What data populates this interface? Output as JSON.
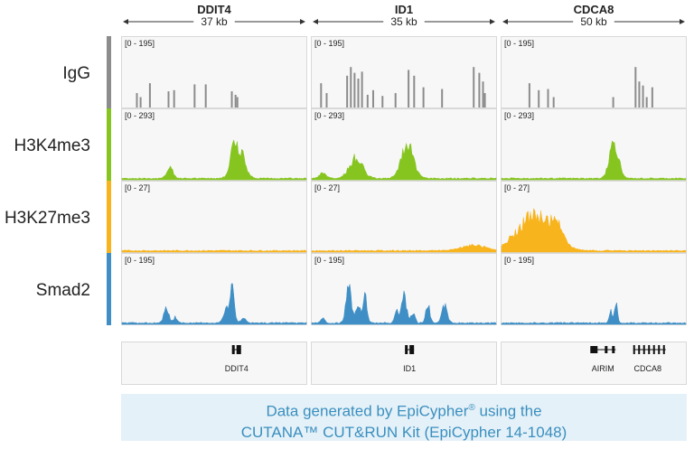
{
  "chart_data": {
    "type": "area",
    "description_tracks": "genome browser coverage tracks",
    "loci": [
      {
        "gene": "DDIT4",
        "size": "37 kb",
        "annotations": [
          {
            "label": "DDIT4",
            "center": 0.62
          }
        ]
      },
      {
        "gene": "ID1",
        "size": "35 kb",
        "annotations": [
          {
            "label": "ID1",
            "center": 0.53
          }
        ]
      },
      {
        "gene": "CDCA8",
        "size": "50 kb",
        "annotations": [
          {
            "label": "AIRIM",
            "center": 0.55
          },
          {
            "label": "CDCA8",
            "center": 0.79
          }
        ]
      }
    ],
    "tracks": [
      {
        "name": "IgG",
        "color": "#8c8c8c",
        "style": "bars",
        "ranges": [
          "[0 - 195]",
          "[0 - 195]",
          "[0 - 195]"
        ]
      },
      {
        "name": "H3K4me3",
        "color": "#86c520",
        "style": "area",
        "ranges": [
          "[0 - 293]",
          "[0 - 293]",
          "[0 - 293]"
        ]
      },
      {
        "name": "H3K27me3",
        "color": "#f8b41c",
        "style": "area",
        "ranges": [
          "[0 - 27]",
          "[0 - 27]",
          "[0 - 27]"
        ]
      },
      {
        "name": "Smad2",
        "color": "#3f8fc6",
        "style": "area",
        "ranges": [
          "[0 - 195]",
          "[0 - 195]",
          "[0 - 195]"
        ]
      }
    ],
    "signal": {
      "IgG": [
        [
          [
            0.08,
            0.25
          ],
          [
            0.1,
            0.18
          ],
          [
            0.15,
            0.42
          ],
          [
            0.25,
            0.28
          ],
          [
            0.28,
            0.3
          ],
          [
            0.39,
            0.4
          ],
          [
            0.45,
            0.4
          ],
          [
            0.59,
            0.28
          ],
          [
            0.61,
            0.22
          ],
          [
            0.62,
            0.18
          ]
        ],
        [
          [
            0.05,
            0.42
          ],
          [
            0.08,
            0.25
          ],
          [
            0.19,
            0.55
          ],
          [
            0.21,
            0.7
          ],
          [
            0.23,
            0.6
          ],
          [
            0.25,
            0.5
          ],
          [
            0.27,
            0.62
          ],
          [
            0.3,
            0.22
          ],
          [
            0.33,
            0.3
          ],
          [
            0.38,
            0.2
          ],
          [
            0.45,
            0.25
          ],
          [
            0.52,
            0.65
          ],
          [
            0.55,
            0.55
          ],
          [
            0.6,
            0.35
          ],
          [
            0.7,
            0.32
          ],
          [
            0.87,
            0.7
          ],
          [
            0.9,
            0.6
          ],
          [
            0.92,
            0.45
          ],
          [
            0.93,
            0.25
          ]
        ],
        [
          [
            0.15,
            0.42
          ],
          [
            0.2,
            0.3
          ],
          [
            0.25,
            0.32
          ],
          [
            0.28,
            0.18
          ],
          [
            0.6,
            0.18
          ],
          [
            0.72,
            0.7
          ],
          [
            0.74,
            0.45
          ],
          [
            0.76,
            0.38
          ],
          [
            0.78,
            0.18
          ],
          [
            0.81,
            0.35
          ]
        ]
      ],
      "H3K4me3": [
        [
          {
            "c": 0.26,
            "w": 0.025,
            "h": 0.22
          },
          {
            "c": 0.63,
            "w": 0.045,
            "h": 0.68
          },
          {
            "c": 0.6,
            "w": 0.02,
            "h": 0.3
          }
        ],
        [
          {
            "c": 0.06,
            "w": 0.025,
            "h": 0.12
          },
          {
            "c": 0.24,
            "w": 0.05,
            "h": 0.44
          },
          {
            "c": 0.52,
            "w": 0.045,
            "h": 0.78
          }
        ],
        [
          {
            "c": 0.61,
            "w": 0.035,
            "h": 0.78
          }
        ]
      ],
      "H3K27me3": [
        [],
        [
          {
            "c": 0.88,
            "w": 0.09,
            "h": 0.12
          }
        ],
        [
          {
            "c": 0.18,
            "w": 0.13,
            "h": 0.75
          },
          {
            "c": 0.3,
            "w": 0.05,
            "h": 0.3
          }
        ]
      ],
      "Smad2": [
        [
          {
            "c": 0.24,
            "w": 0.02,
            "h": 0.3
          },
          {
            "c": 0.29,
            "w": 0.015,
            "h": 0.12
          },
          {
            "c": 0.57,
            "w": 0.025,
            "h": 0.3
          },
          {
            "c": 0.6,
            "w": 0.015,
            "h": 0.68
          },
          {
            "c": 0.66,
            "w": 0.02,
            "h": 0.1
          }
        ],
        [
          {
            "c": 0.06,
            "w": 0.015,
            "h": 0.12
          },
          {
            "c": 0.2,
            "w": 0.02,
            "h": 0.75
          },
          {
            "c": 0.25,
            "w": 0.02,
            "h": 0.35
          },
          {
            "c": 0.29,
            "w": 0.015,
            "h": 0.55
          },
          {
            "c": 0.46,
            "w": 0.015,
            "h": 0.25
          },
          {
            "c": 0.5,
            "w": 0.02,
            "h": 0.6
          },
          {
            "c": 0.55,
            "w": 0.015,
            "h": 0.22
          },
          {
            "c": 0.63,
            "w": 0.015,
            "h": 0.4
          },
          {
            "c": 0.72,
            "w": 0.02,
            "h": 0.38
          }
        ],
        [
          {
            "c": 0.59,
            "w": 0.01,
            "h": 0.28
          },
          {
            "c": 0.62,
            "w": 0.012,
            "h": 0.42
          }
        ]
      ]
    }
  },
  "banner": {
    "line1a": "Data generated by EpiCypher",
    "line1sup": "®",
    "line1b": " using the",
    "line2": "CUTANA™ CUT&RUN Kit (EpiCypher 14-1048)"
  }
}
